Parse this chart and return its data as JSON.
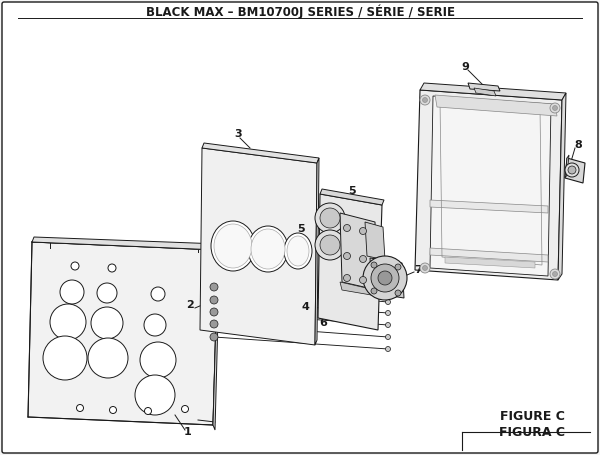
{
  "title": "BLACK MAX – BM10700J SERIES / SÉRIE / SERIE",
  "figure_label": "FIGURE C",
  "figura_label": "FIGURA C",
  "bg_color": "#f5f5f5",
  "lc": "#1a1a1a",
  "title_fontsize": 8.5,
  "figure_fontsize": 9
}
